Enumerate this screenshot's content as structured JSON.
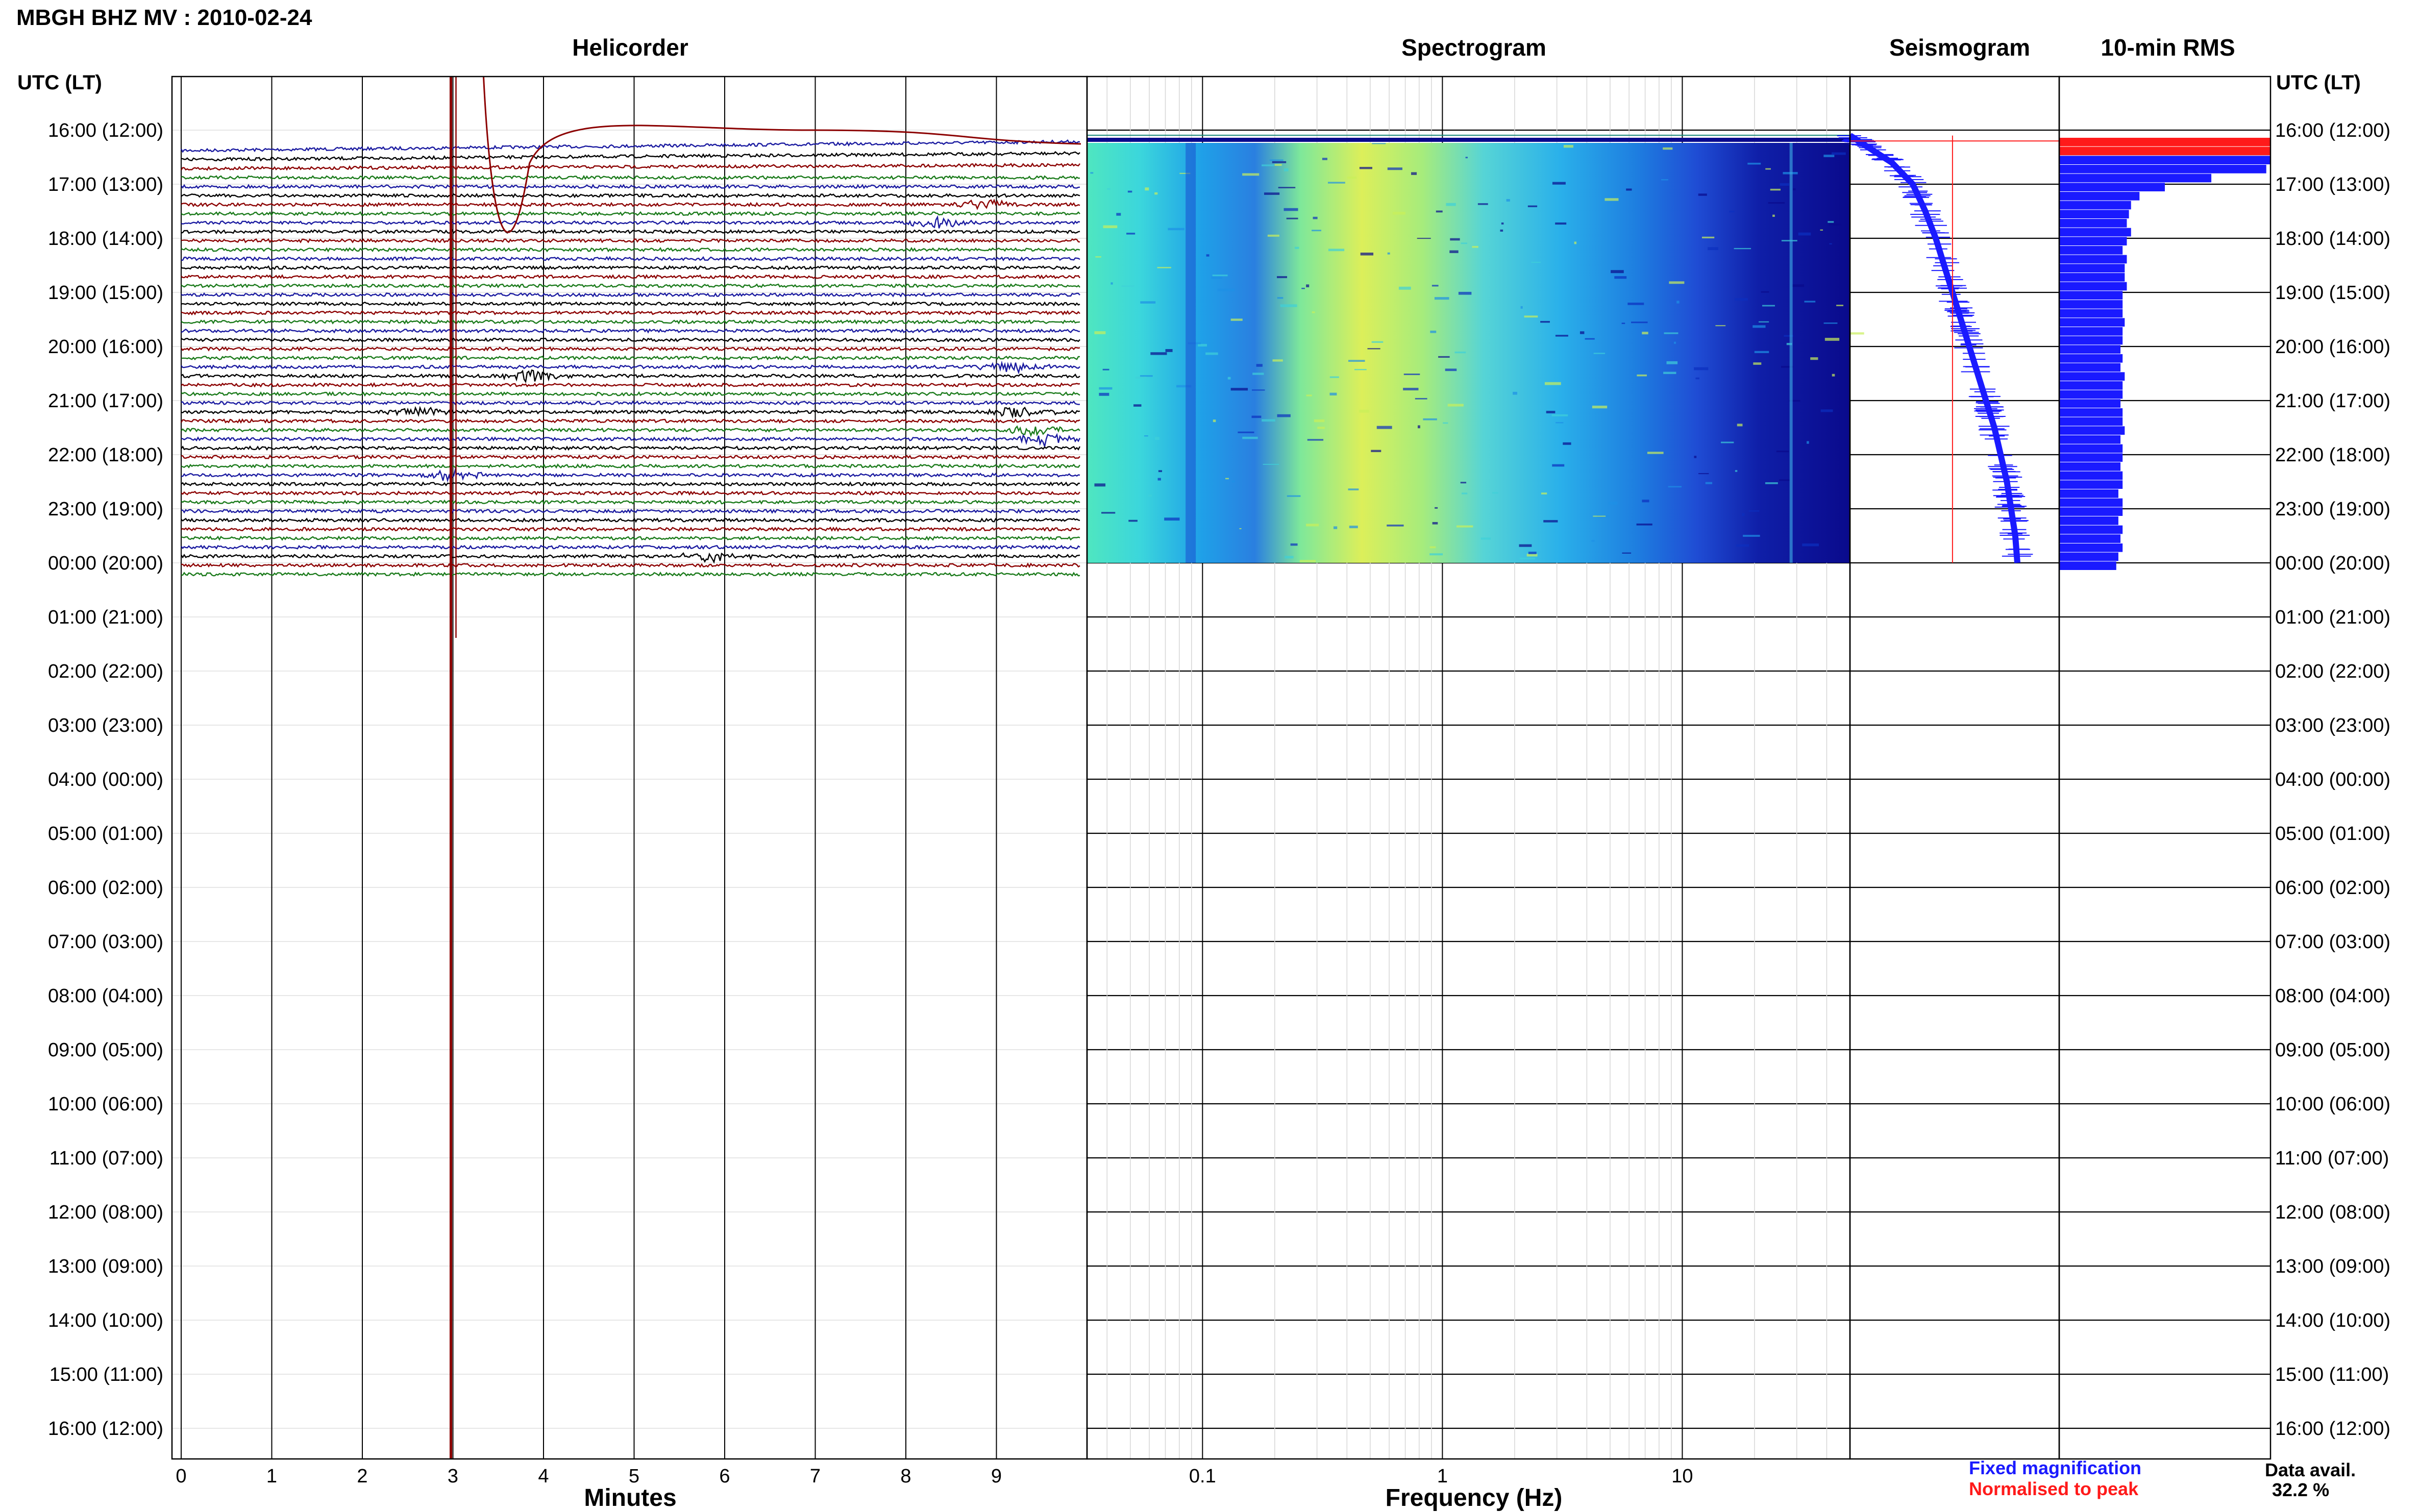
{
  "figure": {
    "title": "MBGH BHZ MV : 2010-02-24",
    "panels": {
      "helicorder": "Helicorder",
      "spectrogram": "Spectrogram",
      "seismogram": "Seismogram",
      "rms": "10-min RMS"
    },
    "row_axis_label_left": "UTC (LT)",
    "row_axis_label_right": "UTC (LT)",
    "row_labels": [
      "16:00 (12:00)",
      "17:00 (13:00)",
      "18:00 (14:00)",
      "19:00 (15:00)",
      "20:00 (16:00)",
      "21:00 (17:00)",
      "22:00 (18:00)",
      "23:00 (19:00)",
      "00:00 (20:00)",
      "01:00 (21:00)",
      "02:00 (22:00)",
      "03:00 (23:00)",
      "04:00 (00:00)",
      "05:00 (01:00)",
      "06:00 (02:00)",
      "07:00 (03:00)",
      "08:00 (04:00)",
      "09:00 (05:00)",
      "10:00 (06:00)",
      "11:00 (07:00)",
      "12:00 (08:00)",
      "13:00 (09:00)",
      "14:00 (10:00)",
      "15:00 (11:00)",
      "16:00 (12:00)"
    ],
    "helicorder_xticks": [
      "0",
      "1",
      "2",
      "3",
      "4",
      "5",
      "6",
      "7",
      "8",
      "9"
    ],
    "helicorder_xlabel": "Minutes",
    "spectrogram_xticks": [
      "0.1",
      "1",
      "10"
    ],
    "spectrogram_xlabel": "Frequency (Hz)",
    "legend": {
      "fixed": "Fixed magnification",
      "normalised": "Normalised to peak",
      "fixed_color": "#1a1aff",
      "normalised_color": "#ff1a1a"
    },
    "data_avail_label": "Data avail.",
    "data_avail_value": "32.2 %"
  },
  "chart_data": [
    {
      "type": "line",
      "panel": "Helicorder",
      "xlabel": "Minutes",
      "xlim": [
        0,
        10
      ],
      "trace_interval_minutes": 10,
      "trace_colors": [
        "#1a1aa0",
        "#000000",
        "#8b0000",
        "#1a7a1a"
      ],
      "time_range_utc": [
        "16:00",
        "00:00"
      ],
      "events": [
        {
          "row_time_utc": "16:00",
          "minute": 3.0,
          "kind": "large transient",
          "color": "#8b0000"
        },
        {
          "row_time_utc": "17:00",
          "minute": 8.9,
          "kind": "burst",
          "color": "#1a1aa0"
        },
        {
          "row_time_utc": "17:20",
          "minute": 8.4,
          "kind": "burst",
          "color": "#8b0000"
        },
        {
          "row_time_utc": "20:10",
          "minute": 3.9,
          "kind": "burst",
          "color": "#1a1aa0"
        },
        {
          "row_time_utc": "20:00",
          "minute": 9.2,
          "kind": "burst",
          "color": "#8b0000"
        },
        {
          "row_time_utc": "20:50",
          "minute": 2.6,
          "kind": "burst",
          "color": "#8b0000"
        },
        {
          "row_time_utc": "20:50",
          "minute": 9.3,
          "kind": "burst",
          "color": "#8b0000"
        },
        {
          "row_time_utc": "21:10",
          "minute": 9.5,
          "kind": "burst",
          "color": "#000000"
        },
        {
          "row_time_utc": "21:20",
          "minute": 9.6,
          "kind": "burst",
          "color": "#8b0000"
        },
        {
          "row_time_utc": "22:00",
          "minute": 3.0,
          "kind": "burst",
          "color": "#8b0000"
        },
        {
          "row_time_utc": "23:30",
          "minute": 5.9,
          "kind": "burst",
          "color": "#8b0000"
        }
      ]
    },
    {
      "type": "heatmap",
      "panel": "Spectrogram",
      "xlabel": "Frequency (Hz)",
      "xscale": "log",
      "xlim": [
        0.033,
        50
      ],
      "time_range_utc": [
        "16:10",
        "00:00"
      ],
      "colormap": [
        "#0a0a8c",
        "#1a3ad9",
        "#1e90e6",
        "#3fd0d8",
        "#8ee887",
        "#e4f04a"
      ],
      "relative_intensity": [
        {
          "freq_hz": 0.035,
          "level": 0.55
        },
        {
          "freq_hz": 0.06,
          "level": 0.6
        },
        {
          "freq_hz": 0.1,
          "level": 0.55
        },
        {
          "freq_hz": 0.2,
          "level": 0.8
        },
        {
          "freq_hz": 0.3,
          "level": 0.92
        },
        {
          "freq_hz": 0.5,
          "level": 0.75
        },
        {
          "freq_hz": 1,
          "level": 0.55
        },
        {
          "freq_hz": 2,
          "level": 0.45
        },
        {
          "freq_hz": 5,
          "level": 0.35
        },
        {
          "freq_hz": 10,
          "level": 0.18
        },
        {
          "freq_hz": 20,
          "level": 0.08
        },
        {
          "freq_hz": 50,
          "level": 0.05
        }
      ]
    },
    {
      "type": "line",
      "panel": "Seismogram",
      "series": [
        {
          "name": "Fixed magnification",
          "color": "#1a1aff",
          "hours": [
            0.1,
            0.3,
            0.6,
            1.0,
            1.5,
            2.0,
            2.5,
            3.0,
            3.5,
            4.0,
            4.5,
            5.0,
            5.5,
            6.0,
            6.5,
            7.0,
            7.5,
            8.0
          ],
          "level": [
            0.0,
            0.08,
            0.2,
            0.3,
            0.36,
            0.41,
            0.45,
            0.49,
            0.53,
            0.57,
            0.61,
            0.65,
            0.69,
            0.72,
            0.75,
            0.77,
            0.79,
            0.8
          ]
        },
        {
          "name": "Normalised to peak",
          "color": "#ff1a1a",
          "hours": [
            0.1,
            8.0
          ],
          "level": [
            0.49,
            0.49
          ]
        }
      ]
    },
    {
      "type": "bar",
      "panel": "10-min RMS",
      "orientation": "horizontal",
      "interval_minutes": 10,
      "start_utc": "16:00",
      "peak_color": "#ff1a1a",
      "bar_color": "#1a1aff",
      "values": [
        1.0,
        1.0,
        1.0,
        0.98,
        0.72,
        0.5,
        0.38,
        0.34,
        0.33,
        0.32,
        0.34,
        0.32,
        0.3,
        0.32,
        0.31,
        0.31,
        0.32,
        0.3,
        0.3,
        0.3,
        0.31,
        0.3,
        0.3,
        0.29,
        0.3,
        0.29,
        0.31,
        0.3,
        0.3,
        0.29,
        0.3,
        0.3,
        0.31,
        0.29,
        0.3,
        0.3,
        0.29,
        0.3,
        0.3,
        0.28,
        0.3,
        0.3,
        0.28,
        0.3,
        0.29,
        0.3,
        0.28,
        0.27
      ]
    }
  ]
}
